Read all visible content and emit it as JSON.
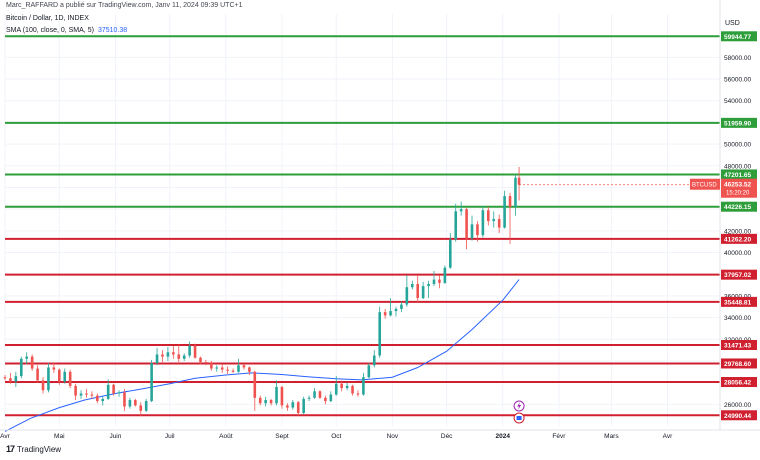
{
  "header": {
    "published": "Marc_RAFFARD a publié sur TradingView.com, Janv 11, 2024 09:39 UTC+1",
    "symbol": "Bitcoin / Dollar, 1D, INDEX",
    "sma_label": "SMA (100, close, 0, SMA, 5)",
    "sma_value": "37510.38"
  },
  "footer": {
    "brand": "TradingView",
    "logo": "tradingview-logo-icon"
  },
  "colors": {
    "support": "#2e9e3a",
    "resistance": "#d0202f",
    "up": "#26a69a",
    "down": "#ef5350",
    "sma": "#2962ff"
  },
  "chart_data": {
    "type": "candlestick",
    "currency": "USD",
    "y_range": [
      24000,
      62000
    ],
    "y_ticks": [
      26000,
      28000,
      30000,
      32000,
      34000,
      36000,
      38000,
      40000,
      42000,
      44000,
      46000,
      48000,
      50000,
      52000,
      54000,
      56000,
      58000,
      60000
    ],
    "y_tick_labels": [
      "26000.00",
      "28000.00",
      "30000.00",
      "32000.00",
      "34000.00",
      "36000.00",
      "38000.00",
      "40000.00",
      "42000.00",
      "44000.00",
      "46000.00",
      "48000.00",
      "50000.00",
      "52000.00",
      "54000.00",
      "56000.00",
      "58000.00",
      "60000.00"
    ],
    "x_range": [
      "2023-04-01",
      "2024-04-30"
    ],
    "x_labels": [
      {
        "date": "2023-04-01",
        "label": "Avr"
      },
      {
        "date": "2023-05-01",
        "label": "Mai"
      },
      {
        "date": "2023-06-01",
        "label": "Juin"
      },
      {
        "date": "2023-07-01",
        "label": "Juil"
      },
      {
        "date": "2023-08-01",
        "label": "Août"
      },
      {
        "date": "2023-09-01",
        "label": "Sept"
      },
      {
        "date": "2023-10-01",
        "label": "Oct"
      },
      {
        "date": "2023-11-01",
        "label": "Nov"
      },
      {
        "date": "2023-12-01",
        "label": "Déc"
      },
      {
        "date": "2024-01-01",
        "label": "2024"
      },
      {
        "date": "2024-02-01",
        "label": "Févr"
      },
      {
        "date": "2024-03-01",
        "label": "Mars"
      },
      {
        "date": "2024-04-01",
        "label": "Avr"
      }
    ],
    "levels": [
      {
        "value": 59944.77,
        "label": "59944.77",
        "type": "support"
      },
      {
        "value": 51959.9,
        "label": "51959.90",
        "type": "support"
      },
      {
        "value": 47201.65,
        "label": "47201.65",
        "type": "support"
      },
      {
        "value": 44226.15,
        "label": "44226.15",
        "type": "support"
      },
      {
        "value": 41262.2,
        "label": "41262.20",
        "type": "resistance"
      },
      {
        "value": 37957.02,
        "label": "37957.02",
        "type": "resistance"
      },
      {
        "value": 35448.81,
        "label": "35448.81",
        "type": "resistance"
      },
      {
        "value": 31471.43,
        "label": "31471.43",
        "type": "resistance"
      },
      {
        "value": 29768.6,
        "label": "29768.60",
        "type": "resistance"
      },
      {
        "value": 28056.42,
        "label": "28056.42",
        "type": "resistance"
      },
      {
        "value": 24990.44,
        "label": "24990.44",
        "type": "resistance"
      }
    ],
    "current_price": {
      "ticker": "BTCUSD",
      "value": "46253.52",
      "countdown": "15:20:20",
      "numeric": 46253.52
    },
    "candles": [
      [
        "2023-04-01",
        28500,
        28700,
        28200,
        28400
      ],
      [
        "2023-04-04",
        28400,
        28900,
        27900,
        28100
      ],
      [
        "2023-04-07",
        28100,
        29000,
        27600,
        28600
      ],
      [
        "2023-04-10",
        28600,
        30400,
        28400,
        30200
      ],
      [
        "2023-04-13",
        30200,
        30800,
        29700,
        30400
      ],
      [
        "2023-04-16",
        30400,
        30600,
        29100,
        29300
      ],
      [
        "2023-04-19",
        29300,
        29600,
        28000,
        28200
      ],
      [
        "2023-04-22",
        28200,
        28500,
        27000,
        27300
      ],
      [
        "2023-04-25",
        27300,
        29800,
        27100,
        29400
      ],
      [
        "2023-04-28",
        29400,
        29800,
        28900,
        29200
      ],
      [
        "2023-05-01",
        29200,
        29300,
        27800,
        28100
      ],
      [
        "2023-05-04",
        28100,
        29300,
        27900,
        29000
      ],
      [
        "2023-05-07",
        29000,
        29200,
        27500,
        27700
      ],
      [
        "2023-05-10",
        27700,
        27900,
        26400,
        26800
      ],
      [
        "2023-05-13",
        26800,
        27300,
        26500,
        27000
      ],
      [
        "2023-05-16",
        27000,
        27400,
        26600,
        26900
      ],
      [
        "2023-05-19",
        26900,
        27200,
        26500,
        26800
      ],
      [
        "2023-05-22",
        26800,
        27000,
        26100,
        26300
      ],
      [
        "2023-05-25",
        26300,
        26700,
        25900,
        26500
      ],
      [
        "2023-05-28",
        26500,
        28300,
        26400,
        27800
      ],
      [
        "2023-05-31",
        27800,
        27900,
        26800,
        27000
      ],
      [
        "2023-06-03",
        27000,
        27300,
        26700,
        27100
      ],
      [
        "2023-06-06",
        27100,
        27400,
        25400,
        25800
      ],
      [
        "2023-06-09",
        25800,
        26600,
        25600,
        26400
      ],
      [
        "2023-06-12",
        26400,
        26500,
        25800,
        25900
      ],
      [
        "2023-06-15",
        25900,
        26200,
        24900,
        25400
      ],
      [
        "2023-06-18",
        25400,
        26500,
        25300,
        26300
      ],
      [
        "2023-06-21",
        26300,
        30100,
        26200,
        29800
      ],
      [
        "2023-06-24",
        29800,
        31200,
        29600,
        30600
      ],
      [
        "2023-06-27",
        30600,
        31000,
        29900,
        30400
      ],
      [
        "2023-06-30",
        30400,
        31300,
        30000,
        30800
      ],
      [
        "2023-07-03",
        30800,
        31400,
        30200,
        30600
      ],
      [
        "2023-07-06",
        30600,
        31500,
        29900,
        30200
      ],
      [
        "2023-07-09",
        30200,
        30700,
        30000,
        30500
      ],
      [
        "2023-07-12",
        30500,
        31800,
        30300,
        31400
      ],
      [
        "2023-07-15",
        31400,
        31600,
        30200,
        30300
      ],
      [
        "2023-07-18",
        30300,
        30400,
        29700,
        29900
      ],
      [
        "2023-07-21",
        29900,
        30100,
        29600,
        29800
      ],
      [
        "2023-07-24",
        29800,
        30000,
        29100,
        29300
      ],
      [
        "2023-07-27",
        29300,
        29600,
        29000,
        29400
      ],
      [
        "2023-07-30",
        29400,
        29700,
        28900,
        29200
      ],
      [
        "2023-08-02",
        29200,
        29500,
        28800,
        29100
      ],
      [
        "2023-08-05",
        29100,
        29300,
        28900,
        29000
      ],
      [
        "2023-08-08",
        29000,
        30200,
        28900,
        29600
      ],
      [
        "2023-08-11",
        29600,
        29700,
        29200,
        29400
      ],
      [
        "2023-08-14",
        29400,
        29500,
        28700,
        29000
      ],
      [
        "2023-08-17",
        29000,
        29100,
        25400,
        26600
      ],
      [
        "2023-08-20",
        26600,
        26800,
        25900,
        26100
      ],
      [
        "2023-08-23",
        26100,
        26700,
        25800,
        26400
      ],
      [
        "2023-08-26",
        26400,
        26500,
        25900,
        26100
      ],
      [
        "2023-08-29",
        26100,
        28200,
        25900,
        27600
      ],
      [
        "2023-09-01",
        27600,
        27700,
        25600,
        25900
      ],
      [
        "2023-09-04",
        25900,
        26100,
        25400,
        25700
      ],
      [
        "2023-09-07",
        25700,
        26400,
        25500,
        26200
      ],
      [
        "2023-09-10",
        26200,
        26300,
        24900,
        25200
      ],
      [
        "2023-09-13",
        25200,
        26700,
        25100,
        26500
      ],
      [
        "2023-09-16",
        26500,
        26800,
        26300,
        26600
      ],
      [
        "2023-09-19",
        26600,
        27500,
        26500,
        27200
      ],
      [
        "2023-09-22",
        27200,
        27300,
        26500,
        26600
      ],
      [
        "2023-09-25",
        26600,
        26800,
        26000,
        26300
      ],
      [
        "2023-09-28",
        26300,
        27200,
        26200,
        26900
      ],
      [
        "2023-10-01",
        26900,
        28600,
        26800,
        27900
      ],
      [
        "2023-10-04",
        27900,
        28200,
        27200,
        27500
      ],
      [
        "2023-10-07",
        27500,
        28000,
        27300,
        27700
      ],
      [
        "2023-10-10",
        27700,
        27800,
        26800,
        27000
      ],
      [
        "2023-10-13",
        27000,
        27300,
        26700,
        26900
      ],
      [
        "2023-10-16",
        26900,
        28900,
        26800,
        28500
      ],
      [
        "2023-10-19",
        28500,
        29800,
        28400,
        29600
      ],
      [
        "2023-10-22",
        29600,
        31000,
        29400,
        30500
      ],
      [
        "2023-10-25",
        30500,
        35000,
        30300,
        34500
      ],
      [
        "2023-10-28",
        34500,
        34800,
        33900,
        34200
      ],
      [
        "2023-10-31",
        34200,
        35800,
        34100,
        34600
      ],
      [
        "2023-11-03",
        34600,
        35000,
        34100,
        34800
      ],
      [
        "2023-11-06",
        34800,
        35500,
        34500,
        35200
      ],
      [
        "2023-11-09",
        35200,
        37900,
        35000,
        36800
      ],
      [
        "2023-11-12",
        36800,
        37400,
        36600,
        37100
      ],
      [
        "2023-11-15",
        37100,
        37900,
        35400,
        35800
      ],
      [
        "2023-11-18",
        35800,
        37300,
        35700,
        36900
      ],
      [
        "2023-11-21",
        36900,
        37400,
        35800,
        37100
      ],
      [
        "2023-11-24",
        37100,
        38300,
        36900,
        37500
      ],
      [
        "2023-11-27",
        37500,
        37900,
        36700,
        37200
      ],
      [
        "2023-11-30",
        37200,
        38800,
        37100,
        38600
      ],
      [
        "2023-12-03",
        38600,
        41800,
        38500,
        41200
      ],
      [
        "2023-12-06",
        41200,
        44500,
        41000,
        43800
      ],
      [
        "2023-12-09",
        43800,
        44700,
        43400,
        44000
      ],
      [
        "2023-12-12",
        44000,
        44100,
        40300,
        41300
      ],
      [
        "2023-12-15",
        41300,
        43400,
        41100,
        42600
      ],
      [
        "2023-12-18",
        42600,
        42900,
        41000,
        41600
      ],
      [
        "2023-12-21",
        41600,
        44300,
        41400,
        43900
      ],
      [
        "2023-12-24",
        43900,
        44200,
        42500,
        42900
      ],
      [
        "2023-12-27",
        42900,
        43800,
        42300,
        43100
      ],
      [
        "2023-12-30",
        43100,
        43500,
        41800,
        42300
      ],
      [
        "2024-01-02",
        42300,
        45700,
        42200,
        45200
      ],
      [
        "2024-01-05",
        45200,
        45500,
        40800,
        44200
      ],
      [
        "2024-01-08",
        44200,
        47200,
        43400,
        46900
      ],
      [
        "2024-01-10",
        46900,
        47900,
        44800,
        46253.52
      ]
    ],
    "sma": [
      [
        "2023-04-01",
        23500
      ],
      [
        "2023-04-15",
        24700
      ],
      [
        "2023-05-01",
        25700
      ],
      [
        "2023-05-15",
        26400
      ],
      [
        "2023-06-01",
        27000
      ],
      [
        "2023-06-15",
        27400
      ],
      [
        "2023-07-01",
        27900
      ],
      [
        "2023-07-15",
        28400
      ],
      [
        "2023-08-01",
        28700
      ],
      [
        "2023-08-15",
        28900
      ],
      [
        "2023-09-01",
        28750
      ],
      [
        "2023-09-15",
        28550
      ],
      [
        "2023-10-01",
        28350
      ],
      [
        "2023-10-15",
        28250
      ],
      [
        "2023-11-01",
        28500
      ],
      [
        "2023-11-15",
        29400
      ],
      [
        "2023-12-01",
        30900
      ],
      [
        "2023-12-15",
        32900
      ],
      [
        "2024-01-01",
        35600
      ],
      [
        "2024-01-10",
        37510.38
      ]
    ]
  }
}
